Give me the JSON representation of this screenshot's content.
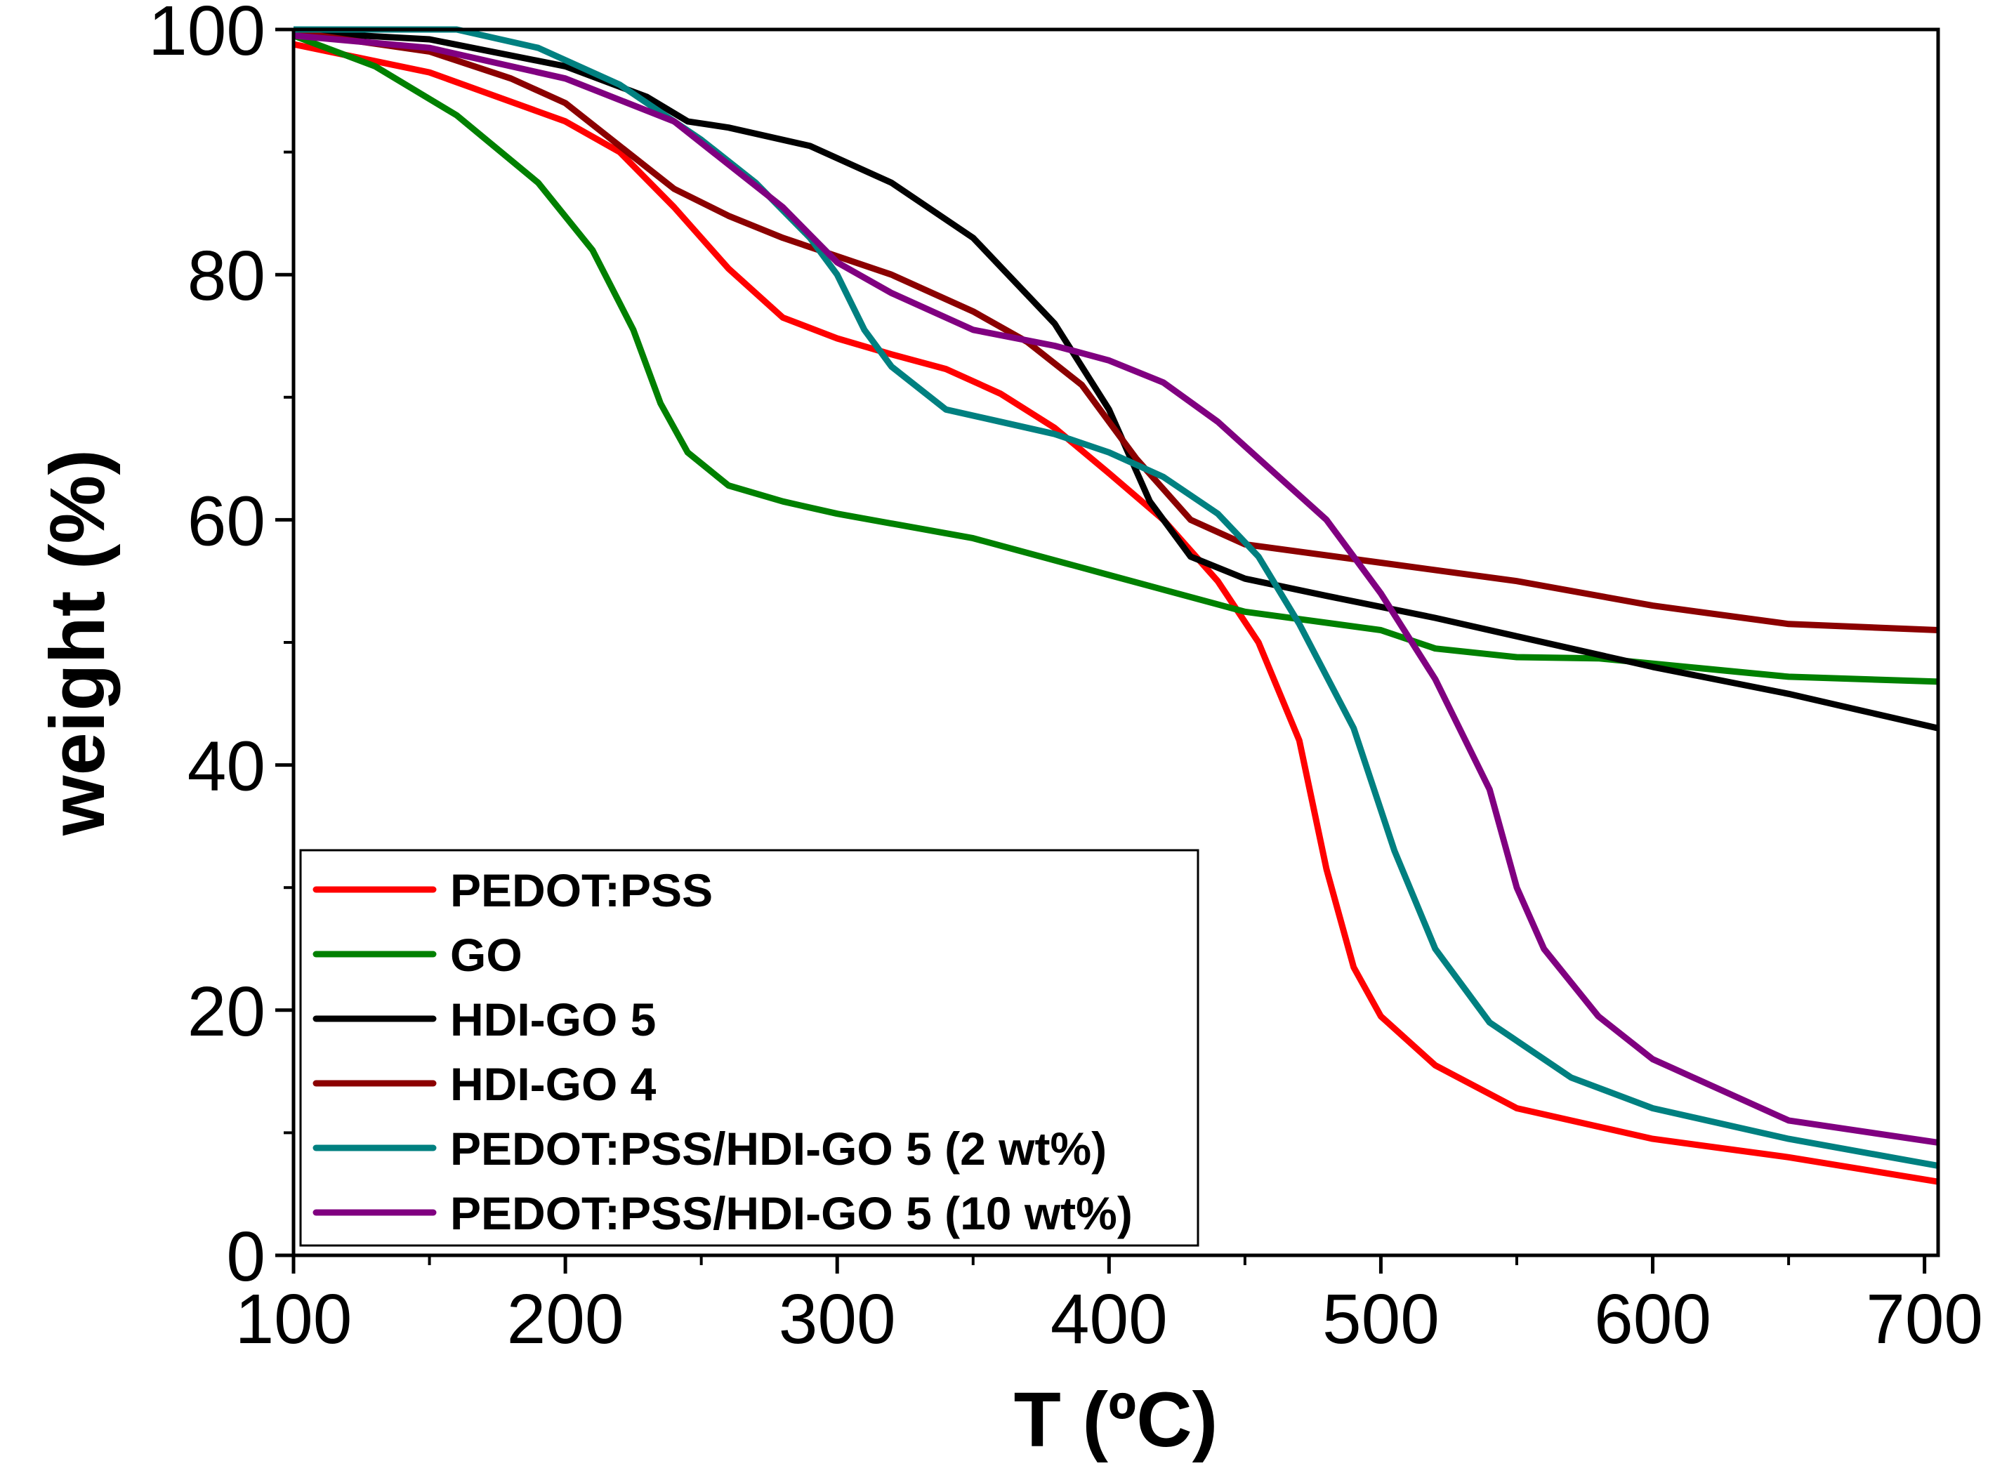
{
  "chart_data": {
    "type": "line",
    "title": "",
    "xlabel": "T (ºC)",
    "ylabel": "weight (%)",
    "xlim": [
      100,
      705
    ],
    "ylim": [
      0,
      100
    ],
    "xticks": [
      100,
      200,
      300,
      400,
      500,
      600,
      700
    ],
    "yticks": [
      0,
      20,
      40,
      60,
      80,
      100
    ],
    "x_minor_step": 50,
    "y_minor_step": 10,
    "grid": false,
    "legend_position": "bottom-left",
    "series": [
      {
        "name": "PEDOT:PSS",
        "color": "#ff0000",
        "x": [
          100,
          150,
          200,
          220,
          240,
          260,
          280,
          300,
          320,
          340,
          360,
          380,
          400,
          420,
          440,
          455,
          470,
          480,
          490,
          500,
          520,
          550,
          600,
          650,
          705
        ],
        "y": [
          98.8,
          96.5,
          92.5,
          90,
          85.5,
          80.5,
          76.5,
          74.8,
          73.5,
          72.3,
          70.3,
          67.5,
          63.8,
          60,
          55,
          50,
          42,
          31.5,
          23.5,
          19.5,
          15.5,
          12,
          9.5,
          8,
          6
        ]
      },
      {
        "name": "GO",
        "color": "#008000",
        "x": [
          100,
          130,
          160,
          190,
          210,
          225,
          235,
          245,
          260,
          280,
          300,
          330,
          350,
          400,
          450,
          500,
          520,
          550,
          580,
          650,
          705
        ],
        "y": [
          99.5,
          97,
          93,
          87.5,
          82,
          75.5,
          69.5,
          65.5,
          62.8,
          61.5,
          60.5,
          59.3,
          58.5,
          55.5,
          52.5,
          51,
          49.5,
          48.8,
          48.7,
          47.2,
          46.8
        ]
      },
      {
        "name": "HDI-GO 5",
        "color": "#000000",
        "x": [
          100,
          150,
          200,
          230,
          245,
          260,
          290,
          320,
          350,
          380,
          400,
          415,
          430,
          450,
          480,
          520,
          550,
          600,
          650,
          705
        ],
        "y": [
          99.8,
          99.2,
          97,
          94.5,
          92.5,
          92,
          90.5,
          87.5,
          83,
          76,
          69,
          61.5,
          57,
          55.2,
          53.8,
          52,
          50.5,
          48,
          45.8,
          43
        ]
      },
      {
        "name": "HDI-GO 4",
        "color": "#8b0000",
        "x": [
          100,
          150,
          180,
          200,
          220,
          240,
          260,
          280,
          300,
          320,
          350,
          370,
          390,
          410,
          430,
          450,
          500,
          550,
          600,
          650,
          705
        ],
        "y": [
          99.8,
          98.2,
          96,
          94,
          90.5,
          87,
          84.8,
          83,
          81.5,
          80,
          77,
          74.5,
          71,
          65,
          60,
          58,
          56.5,
          55,
          53,
          51.5,
          51
        ]
      },
      {
        "name": "PEDOT:PSS/HDI-GO 5 (2 wt%)",
        "color": "#008080",
        "x": [
          100,
          130,
          160,
          190,
          220,
          250,
          270,
          290,
          300,
          310,
          320,
          340,
          360,
          380,
          400,
          420,
          440,
          455,
          470,
          490,
          505,
          520,
          540,
          570,
          600,
          650,
          705
        ],
        "y": [
          100,
          100,
          100,
          98.5,
          95.5,
          91,
          87.5,
          83,
          80,
          75.5,
          72.5,
          69,
          68,
          67,
          65.5,
          63.5,
          60.5,
          57,
          51.5,
          43,
          33,
          25,
          19,
          14.5,
          12,
          9.5,
          7.3
        ]
      },
      {
        "name": "PEDOT:PSS/HDI-GO 5 (10 wt%)",
        "color": "#800080",
        "x": [
          100,
          150,
          200,
          240,
          260,
          280,
          300,
          320,
          350,
          380,
          400,
          420,
          440,
          460,
          480,
          500,
          520,
          540,
          550,
          560,
          580,
          600,
          650,
          705
        ],
        "y": [
          99.5,
          98.5,
          96,
          92.5,
          89,
          85.5,
          81,
          78.5,
          75.5,
          74.2,
          73,
          71.2,
          68,
          64,
          60,
          54,
          47,
          38,
          30,
          25,
          19.5,
          16,
          11,
          9.2
        ]
      }
    ]
  }
}
